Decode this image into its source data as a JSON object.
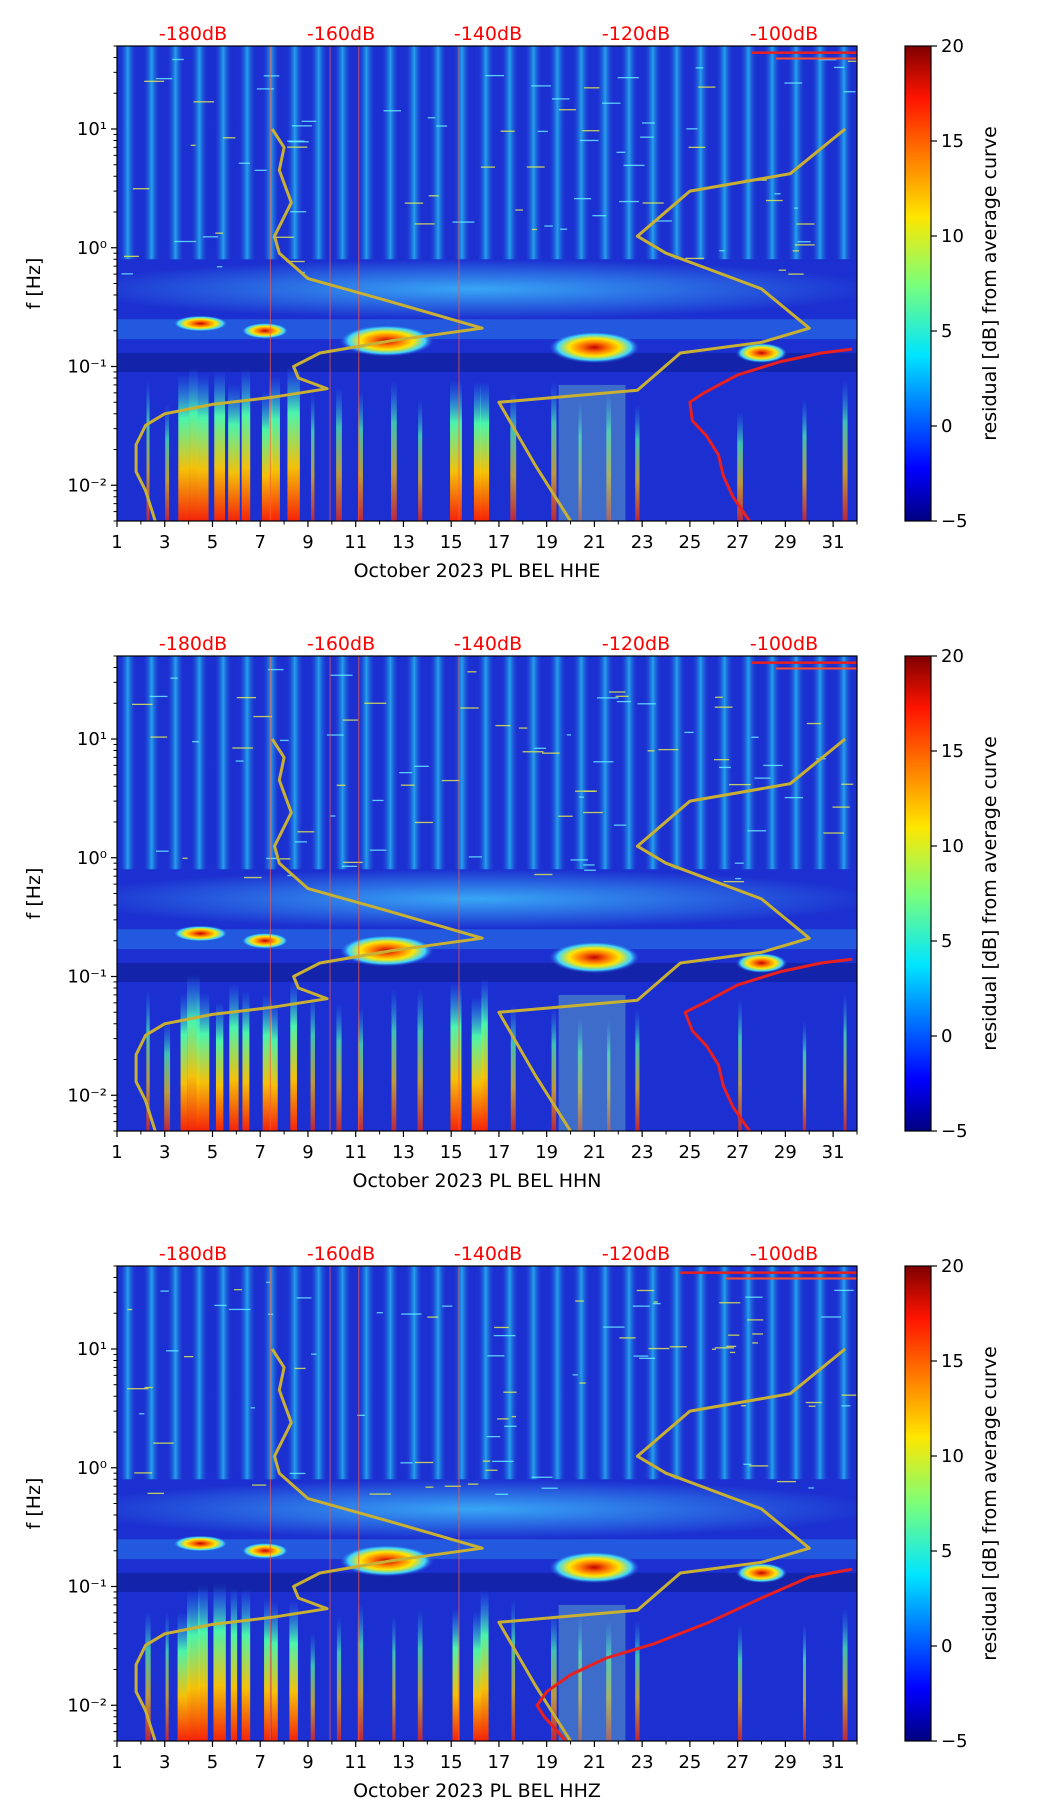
{
  "figure": {
    "colormap": "jet",
    "colors": {
      "spectrum_background": "#1c2fd0",
      "model_curve": "#c8b033",
      "threshold_curve": "#e82020",
      "db_scale_text": "#ff0000",
      "axis": "#000000"
    }
  },
  "chart_data": [
    {
      "type": "heatmap",
      "title": "",
      "xlabel": "October 2023 PL BEL  HHE",
      "ylabel": "f [Hz]",
      "x_ticks": [
        "1",
        "3",
        "5",
        "7",
        "9",
        "11",
        "13",
        "15",
        "17",
        "19",
        "21",
        "23",
        "25",
        "27",
        "29",
        "31"
      ],
      "y_ticks": [
        "10⁻²",
        "10⁻¹",
        "10⁰",
        "10¹"
      ],
      "xlim": [
        1,
        32
      ],
      "ylim": [
        0.005,
        50
      ],
      "yscale": "log",
      "top_axis_labels": [
        "-180dB",
        "-160dB",
        "-140dB",
        "-120dB",
        "-100dB"
      ],
      "colorbar": {
        "label": "residual [dB] from average curve",
        "ticks": [
          "−5",
          "0",
          "5",
          "10",
          "15",
          "20"
        ],
        "range": [
          -5,
          20
        ]
      },
      "series": [
        {
          "name": "noise model curve",
          "x": [
            2.6,
            2.2,
            1.8,
            1.8,
            2.2,
            3.0,
            5.0,
            7.5,
            9.8,
            8.6,
            8.4,
            9.5,
            12.5,
            16.3,
            12.5,
            9.0,
            7.8,
            7.6,
            8.3,
            7.8,
            8.0,
            7.5
          ],
          "y": [
            0.005,
            0.009,
            0.013,
            0.022,
            0.032,
            0.04,
            0.048,
            0.055,
            0.065,
            0.08,
            0.1,
            0.13,
            0.165,
            0.21,
            0.35,
            0.55,
            0.9,
            1.25,
            2.4,
            4.5,
            7.0,
            10.0
          ]
        },
        {
          "name": "noise model curve",
          "x": [
            20.0,
            18.5,
            17.0,
            22.8,
            24.6,
            28.0,
            30.0,
            28.0,
            24.0,
            22.8,
            25.0,
            29.2,
            31.5
          ],
          "y": [
            0.005,
            0.015,
            0.05,
            0.063,
            0.13,
            0.16,
            0.21,
            0.45,
            0.9,
            1.25,
            3.0,
            4.2,
            10.0
          ]
        },
        {
          "name": "threshold curve",
          "x": [
            27.5,
            26.8,
            26.4,
            26.2,
            25.7,
            25.1,
            25.0,
            25.6,
            27.0,
            28.8,
            30.5,
            31.8
          ],
          "y": [
            0.005,
            0.008,
            0.012,
            0.018,
            0.026,
            0.035,
            0.05,
            0.06,
            0.085,
            0.11,
            0.13,
            0.14
          ]
        }
      ],
      "events": [
        "strong microseism 0.1-0.3 Hz near day 12",
        "strong microseism near day 21",
        "microseism near day 28",
        "broadband low-frequency energy days 3-9"
      ]
    },
    {
      "type": "heatmap",
      "title": "",
      "xlabel": "October 2023 PL BEL  HHN",
      "ylabel": "f [Hz]",
      "x_ticks": [
        "1",
        "3",
        "5",
        "7",
        "9",
        "11",
        "13",
        "15",
        "17",
        "19",
        "21",
        "23",
        "25",
        "27",
        "29",
        "31"
      ],
      "y_ticks": [
        "10⁻²",
        "10⁻¹",
        "10⁰",
        "10¹"
      ],
      "xlim": [
        1,
        32
      ],
      "ylim": [
        0.005,
        50
      ],
      "yscale": "log",
      "top_axis_labels": [
        "-180dB",
        "-160dB",
        "-140dB",
        "-120dB",
        "-100dB"
      ],
      "colorbar": {
        "label": "residual [dB] from average curve",
        "ticks": [
          "−5",
          "0",
          "5",
          "10",
          "15",
          "20"
        ],
        "range": [
          -5,
          20
        ]
      },
      "series": [
        {
          "name": "noise model curve",
          "x": [
            2.6,
            2.2,
            1.8,
            1.8,
            2.2,
            3.0,
            5.0,
            7.5,
            9.8,
            8.6,
            8.4,
            9.5,
            12.5,
            16.3,
            12.5,
            9.0,
            7.8,
            7.6,
            8.3,
            7.8,
            8.0,
            7.5
          ],
          "y": [
            0.005,
            0.009,
            0.013,
            0.022,
            0.032,
            0.04,
            0.048,
            0.055,
            0.065,
            0.08,
            0.1,
            0.13,
            0.165,
            0.21,
            0.35,
            0.55,
            0.9,
            1.25,
            2.4,
            4.5,
            7.0,
            10.0
          ]
        },
        {
          "name": "noise model curve",
          "x": [
            20.0,
            18.5,
            17.0,
            22.8,
            24.6,
            28.0,
            30.0,
            28.0,
            24.0,
            22.8,
            25.0,
            29.2,
            31.5
          ],
          "y": [
            0.005,
            0.015,
            0.05,
            0.063,
            0.13,
            0.16,
            0.21,
            0.45,
            0.9,
            1.25,
            3.0,
            4.2,
            10.0
          ]
        },
        {
          "name": "threshold curve",
          "x": [
            27.5,
            26.8,
            26.4,
            26.2,
            25.7,
            25.1,
            24.8,
            25.6,
            27.0,
            28.8,
            30.5,
            31.8
          ],
          "y": [
            0.005,
            0.008,
            0.012,
            0.018,
            0.026,
            0.035,
            0.05,
            0.06,
            0.085,
            0.11,
            0.13,
            0.14
          ]
        }
      ],
      "events": [
        "strong microseism 0.1-0.3 Hz near day 12",
        "strong microseism near day 21",
        "microseism near day 28",
        "broadband low-frequency energy days 3-9"
      ]
    },
    {
      "type": "heatmap",
      "title": "",
      "xlabel": "October 2023 PL BEL  HHZ",
      "ylabel": "f [Hz]",
      "x_ticks": [
        "1",
        "3",
        "5",
        "7",
        "9",
        "11",
        "13",
        "15",
        "17",
        "19",
        "21",
        "23",
        "25",
        "27",
        "29",
        "31"
      ],
      "y_ticks": [
        "10⁻²",
        "10⁻¹",
        "10⁰",
        "10¹"
      ],
      "xlim": [
        1,
        32
      ],
      "ylim": [
        0.005,
        50
      ],
      "yscale": "log",
      "top_axis_labels": [
        "-180dB",
        "-160dB",
        "-140dB",
        "-120dB",
        "-100dB"
      ],
      "colorbar": {
        "label": "residual [dB] from average curve",
        "ticks": [
          "−5",
          "0",
          "5",
          "10",
          "15",
          "20"
        ],
        "range": [
          -5,
          20
        ]
      },
      "series": [
        {
          "name": "noise model curve",
          "x": [
            2.6,
            2.2,
            1.8,
            1.8,
            2.2,
            3.0,
            5.0,
            7.5,
            9.8,
            8.6,
            8.4,
            9.5,
            12.5,
            16.3,
            12.5,
            9.0,
            7.8,
            7.6,
            8.3,
            7.8,
            8.0,
            7.5
          ],
          "y": [
            0.005,
            0.009,
            0.013,
            0.022,
            0.032,
            0.04,
            0.048,
            0.055,
            0.065,
            0.08,
            0.1,
            0.13,
            0.165,
            0.21,
            0.35,
            0.55,
            0.9,
            1.25,
            2.4,
            4.5,
            7.0,
            10.0
          ]
        },
        {
          "name": "noise model curve",
          "x": [
            20.0,
            18.5,
            17.0,
            22.8,
            24.6,
            28.0,
            30.0,
            28.0,
            24.0,
            22.8,
            25.0,
            29.2,
            31.5
          ],
          "y": [
            0.005,
            0.015,
            0.05,
            0.063,
            0.13,
            0.16,
            0.21,
            0.45,
            0.9,
            1.25,
            3.0,
            4.2,
            10.0
          ]
        },
        {
          "name": "threshold curve",
          "x": [
            19.8,
            18.9,
            18.6,
            19.0,
            20.0,
            21.5,
            23.5,
            25.8,
            28.0,
            30.0,
            31.8
          ],
          "y": [
            0.005,
            0.008,
            0.01,
            0.013,
            0.018,
            0.025,
            0.033,
            0.05,
            0.08,
            0.12,
            0.14
          ]
        }
      ],
      "events": [
        "strong microseism 0.1-0.3 Hz near day 12",
        "strong microseism near day 21",
        "microseism near day 28",
        "broadband low-frequency energy days 3-9"
      ]
    }
  ]
}
